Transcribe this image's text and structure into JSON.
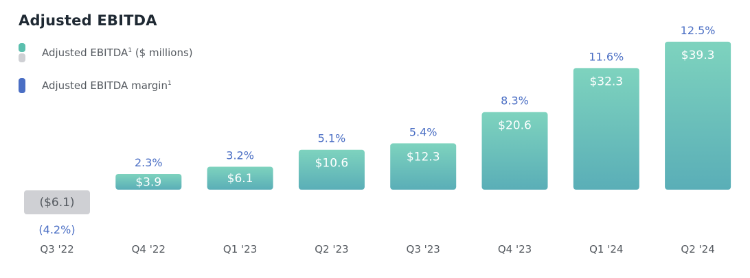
{
  "chart_data": {
    "type": "bar",
    "title": "Adjusted EBITDA",
    "categories": [
      "Q3 '22",
      "Q4 '22",
      "Q1 '23",
      "Q2 '23",
      "Q3 '23",
      "Q4 '23",
      "Q1 '24",
      "Q2 '24"
    ],
    "series": [
      {
        "name": "Adjusted EBITDA¹ ($ millions)",
        "values": [
          -6.1,
          3.9,
          6.1,
          10.6,
          12.3,
          20.6,
          32.3,
          39.3
        ],
        "labels": [
          "($6.1)",
          "$3.9",
          "$6.1",
          "$10.6",
          "$12.3",
          "$20.6",
          "$32.3",
          "$39.3"
        ]
      },
      {
        "name": "Adjusted EBITDA margin¹",
        "values": [
          -4.2,
          2.3,
          3.2,
          5.1,
          5.4,
          8.3,
          11.6,
          12.5
        ],
        "labels": [
          "(4.2%)",
          "2.3%",
          "3.2%",
          "5.1%",
          "5.4%",
          "8.3%",
          "11.6%",
          "12.5%"
        ]
      }
    ],
    "legend": {
      "position": "top-left",
      "items": [
        {
          "label": "Adjusted EBITDA",
          "sup": "1",
          "suffix": " ($ millions)",
          "color": "#5bbfae",
          "color2": "#cfd0d4"
        },
        {
          "label": "Adjusted EBITDA margin",
          "sup": "1",
          "suffix": "",
          "color": "#4a6ec4"
        }
      ]
    },
    "colors": {
      "positive_top": "#7ed3be",
      "positive_bottom": "#5aaeb7",
      "negative": "#cfd0d4",
      "negative_text": "#555a60",
      "margin_text": "#4a6ec4",
      "category_text": "#555a60",
      "bar_label_text": "#ffffff"
    },
    "grid": false
  }
}
